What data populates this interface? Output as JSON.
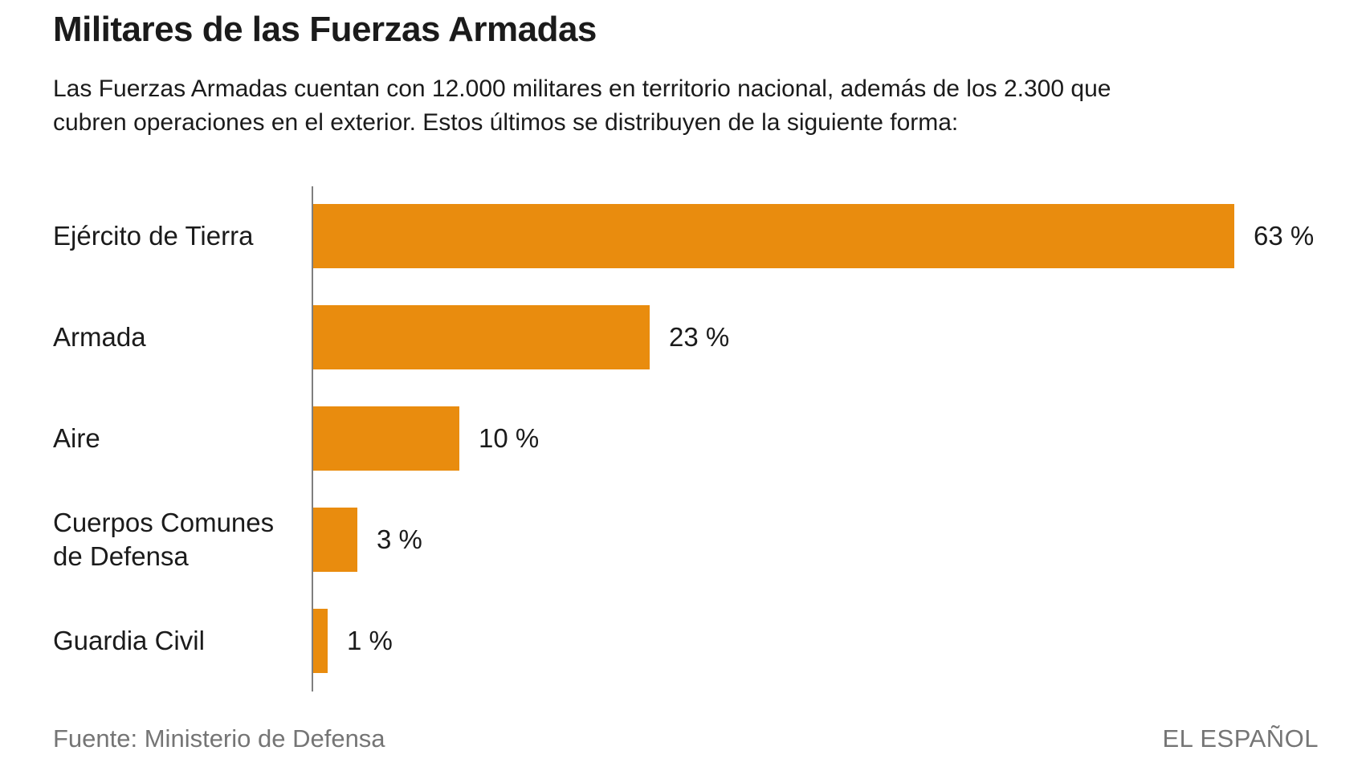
{
  "header": {
    "title": "Militares de las Fuerzas Armadas",
    "subtitle": "Las Fuerzas Armadas cuentan con 12.000 militares en territorio nacional, además de los 2.300 que\ncubren operaciones en el exterior. Estos últimos se distribuyen de la siguiente forma:"
  },
  "chart_data": {
    "type": "bar",
    "orientation": "horizontal",
    "title": "Militares de las Fuerzas Armadas",
    "categories": [
      "Ejército de Tierra",
      "Armada",
      "Aire",
      "Cuerpos Comunes\nde Defensa",
      "Guardia Civil"
    ],
    "values": [
      63,
      23,
      10,
      3,
      1
    ],
    "value_labels": [
      "63 %",
      "23 %",
      "10 %",
      "3 %",
      "1 %"
    ],
    "unit": "percent",
    "xlim": [
      0,
      63
    ],
    "grid": false,
    "legend": false,
    "bar_color": "#E98C0E",
    "axis_color": "#7F7F7F"
  },
  "footer": {
    "source": "Fuente: Ministerio de Defensa",
    "brand": "EL ESPAÑOL"
  },
  "colors": {
    "accent": "#E98C0E",
    "text": "#1B1B1B",
    "muted": "#757575"
  }
}
